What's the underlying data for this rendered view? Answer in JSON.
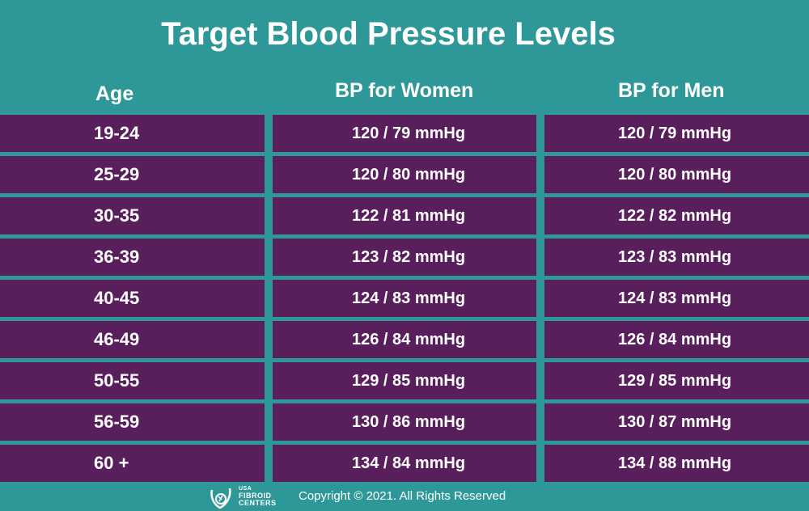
{
  "title": "Target Blood Pressure Levels",
  "headers": {
    "age": "Age",
    "women": "BP for Women",
    "men": "BP for Men"
  },
  "rows": [
    {
      "age": "19-24",
      "women": "120 / 79 mmHg",
      "men": "120 / 79 mmHg"
    },
    {
      "age": "25-29",
      "women": "120 / 80 mmHg",
      "men": "120 / 80 mmHg"
    },
    {
      "age": "30-35",
      "women": "122 / 81 mmHg",
      "men": "122 / 82 mmHg"
    },
    {
      "age": "36-39",
      "women": "123 / 82 mmHg",
      "men": "123 / 83 mmHg"
    },
    {
      "age": "40-45",
      "women": "124 / 83 mmHg",
      "men": "124 / 83 mmHg"
    },
    {
      "age": "46-49",
      "women": "126 / 84 mmHg",
      "men": "126 / 84 mmHg"
    },
    {
      "age": "50-55",
      "women": "129 / 85 mmHg",
      "men": "129 / 85 mmHg"
    },
    {
      "age": "56-59",
      "women": "130 / 86 mmHg",
      "men": "130 / 87 mmHg"
    },
    {
      "age": "60 +",
      "women": "134 / 84 mmHg",
      "men": "134 / 88 mmHg"
    }
  ],
  "footer": {
    "logo_lines": [
      "USA",
      "FIBROID",
      "CENTERS"
    ],
    "copyright": "Copyright © 2021. All Rights Reserved"
  },
  "colors": {
    "background": "#2e9898",
    "cell": "#591f5c",
    "text": "#ffffff"
  }
}
